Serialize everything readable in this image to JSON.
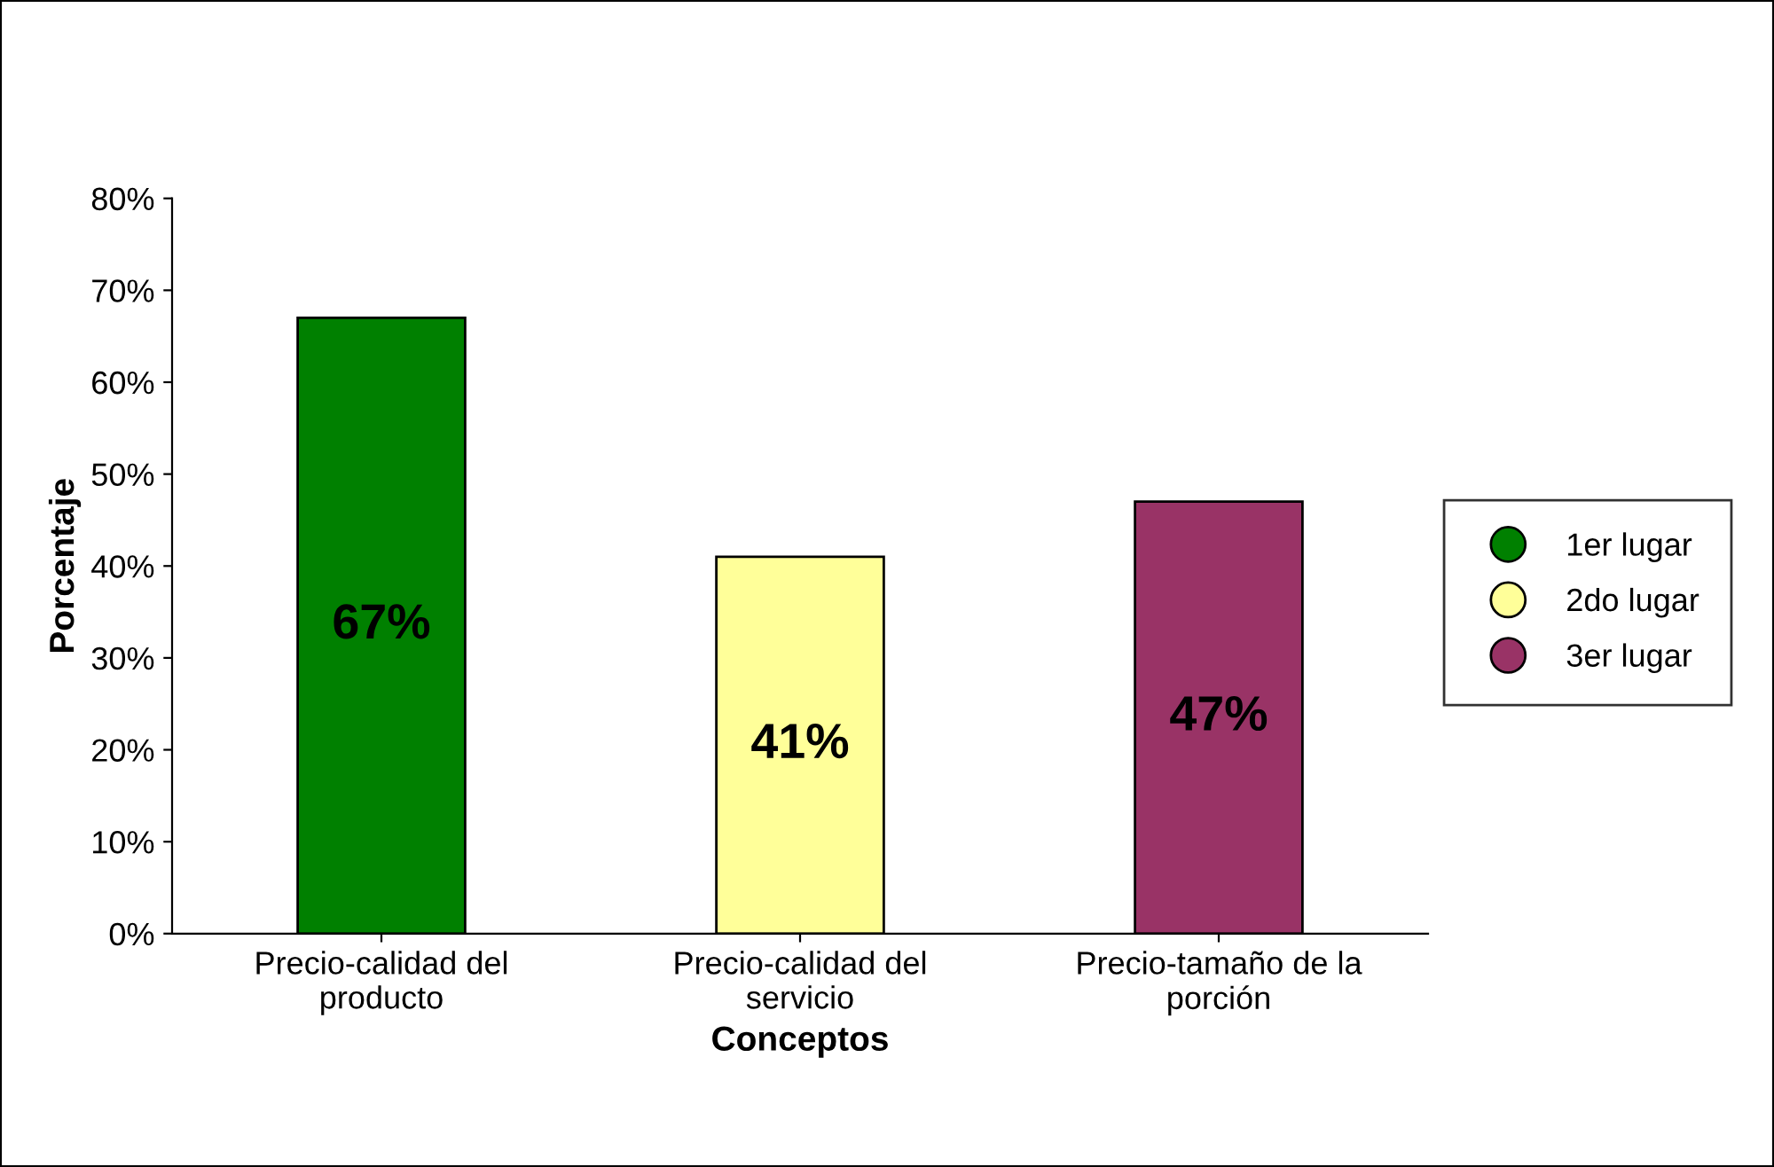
{
  "chart_data": {
    "type": "bar",
    "xlabel": "Conceptos",
    "ylabel": "Porcentaje",
    "categories": [
      "Precio-calidad del\nproducto",
      "Precio-calidad del\nservicio",
      "Precio-tamaño de la\nporción"
    ],
    "series": [
      {
        "name": "1er lugar",
        "color": "#008000",
        "values": [
          67,
          null,
          null
        ],
        "value_labels": [
          "67%",
          null,
          null
        ]
      },
      {
        "name": "2do lugar",
        "color": "#ffff99",
        "values": [
          null,
          41,
          null
        ],
        "value_labels": [
          null,
          "41%",
          null
        ]
      },
      {
        "name": "3er lugar",
        "color": "#993366",
        "values": [
          null,
          null,
          47
        ],
        "value_labels": [
          null,
          null,
          "47%"
        ]
      }
    ],
    "ylim": [
      0,
      80
    ],
    "yticks": [
      {
        "value": 0,
        "label": "0%"
      },
      {
        "value": 10,
        "label": "10%"
      },
      {
        "value": 20,
        "label": "20%"
      },
      {
        "value": 30,
        "label": "30%"
      },
      {
        "value": 40,
        "label": "40%"
      },
      {
        "value": 50,
        "label": "50%"
      },
      {
        "value": 60,
        "label": "60%"
      },
      {
        "value": 70,
        "label": "70%"
      },
      {
        "value": 80,
        "label": "80%"
      }
    ],
    "grid": false,
    "legend": "right",
    "marker": "circle"
  }
}
